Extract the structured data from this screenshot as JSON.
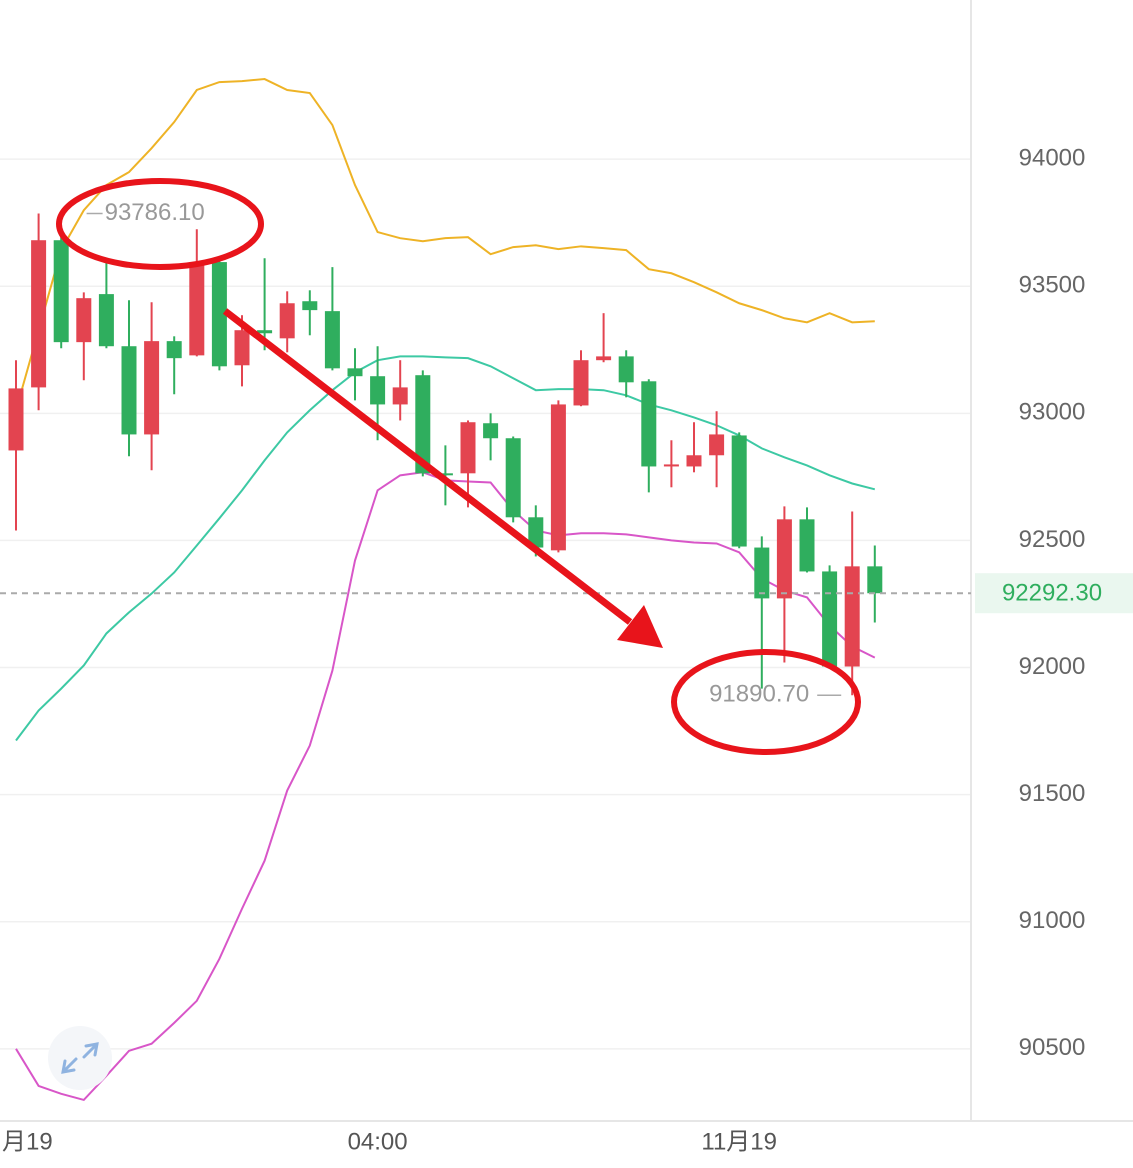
{
  "chart_data": {
    "type": "candlestick",
    "categories": [
      "月19",
      null,
      null,
      null,
      null,
      null,
      null,
      null,
      null,
      null,
      null,
      null,
      null,
      null,
      null,
      null,
      "04:00",
      null,
      null,
      null,
      null,
      null,
      null,
      null,
      null,
      null,
      null,
      null,
      null,
      null,
      null,
      null,
      "11月19",
      null,
      null,
      null,
      null,
      null,
      null
    ],
    "open": [
      92854,
      93102,
      93681,
      93280,
      93469,
      93264,
      92917,
      93284,
      93228,
      93595,
      93189,
      93327,
      93295,
      93441,
      93402,
      93177,
      93146,
      93035,
      93150,
      92764,
      92764,
      92961,
      92902,
      92591,
      92461,
      93031,
      93209,
      93224,
      93126,
      92791,
      92791,
      92835,
      92913,
      92472,
      92272,
      92583,
      92378,
      92004,
      92398
    ],
    "high": [
      93209,
      93786.1,
      93701,
      93476,
      93595,
      93445,
      93437,
      93303,
      93724,
      93602,
      93386,
      93610,
      93480,
      93484,
      93575,
      93256,
      93264,
      93209,
      93169,
      92874,
      92972,
      93000,
      92909,
      92638,
      93051,
      93248,
      93394,
      93248,
      93134,
      92894,
      92965,
      93008,
      92925,
      92516,
      92634,
      92630,
      92402,
      92614,
      92480
    ],
    "low": [
      92539,
      93012,
      93256,
      93130,
      93256,
      92831,
      92776,
      93075,
      93224,
      93169,
      93106,
      93248,
      93240,
      93307,
      93169,
      93051,
      92894,
      92972,
      92752,
      92638,
      92630,
      92815,
      92571,
      92437,
      92453,
      93028,
      93201,
      93063,
      92689,
      92709,
      92768,
      92709,
      92469,
      91917,
      92020,
      92374,
      91996,
      91890.7,
      92177
    ],
    "close": [
      93098,
      93681,
      93280,
      93453,
      93264,
      92917,
      93284,
      93217,
      93595,
      93185,
      93327,
      93315,
      93433,
      93406,
      93177,
      93146,
      93035,
      93102,
      92764,
      92760,
      92965,
      92902,
      92591,
      92472,
      93035,
      93209,
      93224,
      93122,
      92791,
      92799,
      92835,
      92917,
      92476,
      92272,
      92583,
      92378,
      92004,
      92398,
      92292.3
    ],
    "up_color": "#e34450",
    "down_color": "#2fae5e",
    "lines": [
      {
        "color": "#eeb326",
        "values": [
          93012,
          93327,
          93642,
          93799,
          93898,
          93949,
          94043,
          94146,
          94272,
          94303,
          94307,
          94315,
          94272,
          94260,
          94134,
          93898,
          93713,
          93689,
          93677,
          93689,
          93693,
          93626,
          93654,
          93661,
          93646,
          93657,
          93650,
          93642,
          93567,
          93551,
          93516,
          93476,
          93433,
          93406,
          93374,
          93358,
          93394,
          93358,
          93362
        ]
      },
      {
        "color": "#3dc9a4",
        "values": [
          91713,
          91831,
          91917,
          92008,
          92134,
          92217,
          92291,
          92374,
          92480,
          92587,
          92697,
          92815,
          92925,
          93012,
          93091,
          93161,
          93209,
          93224,
          93224,
          93220,
          93217,
          93185,
          93138,
          93091,
          93095,
          93095,
          93091,
          93071,
          93035,
          93012,
          92984,
          92953,
          92913,
          92862,
          92827,
          92795,
          92756,
          92724,
          92701
        ]
      },
      {
        "color": "#d856c8",
        "values": [
          90500,
          90354,
          90323,
          90299,
          90394,
          90492,
          90520,
          90602,
          90689,
          90854,
          91051,
          91240,
          91516,
          91693,
          91988,
          92421,
          92697,
          92756,
          92768,
          92736,
          92732,
          92728,
          92618,
          92539,
          92520,
          92528,
          92528,
          92524,
          92512,
          92500,
          92492,
          92488,
          92453,
          92350,
          92303,
          92276,
          92165,
          92083,
          92039
        ]
      }
    ],
    "extreme_labels": [
      {
        "value": 93786.1,
        "label": "93786.10"
      },
      {
        "value": 91890.7,
        "label": "91890.70"
      }
    ],
    "last_price": {
      "value": 92292.3,
      "label": "92292.30",
      "color": "#2fae5e"
    },
    "ylim": [
      90220,
      94626
    ],
    "yticks": [
      90500,
      91000,
      91500,
      92000,
      92500,
      93000,
      93500,
      94000
    ],
    "grid": true
  }
}
